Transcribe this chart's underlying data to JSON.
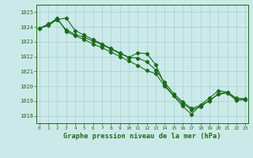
{
  "title": "Graphe pression niveau de la mer (hPa)",
  "bg_color": "#cce9e9",
  "grid_color": "#aad4d4",
  "line_color": "#1a6b1a",
  "xlim": [
    -0.3,
    23.3
  ],
  "ylim": [
    1017.5,
    1025.5
  ],
  "yticks": [
    1018,
    1019,
    1020,
    1021,
    1022,
    1023,
    1024,
    1025
  ],
  "xticks": [
    0,
    1,
    2,
    3,
    4,
    5,
    6,
    7,
    8,
    9,
    10,
    11,
    12,
    13,
    14,
    15,
    16,
    17,
    18,
    19,
    20,
    21,
    22,
    23
  ],
  "series1_x": [
    0,
    1,
    2,
    3,
    4,
    5,
    6,
    7,
    8,
    9,
    10,
    11,
    12,
    13,
    14,
    15,
    16,
    17,
    18,
    19,
    20,
    21,
    22,
    23
  ],
  "series1_y": [
    1023.9,
    1024.1,
    1024.5,
    1024.6,
    1023.75,
    1023.45,
    1023.15,
    1022.85,
    1022.55,
    1022.25,
    1021.95,
    1022.25,
    1022.2,
    1021.45,
    1020.1,
    1019.35,
    1018.65,
    1018.1,
    1018.75,
    1019.2,
    1019.7,
    1019.6,
    1019.2,
    1019.15
  ],
  "series2_x": [
    0,
    1,
    2,
    3,
    4,
    5,
    6,
    7,
    8,
    9,
    10,
    11,
    12,
    13,
    14,
    15,
    16,
    17,
    18,
    19,
    20,
    21,
    22,
    23
  ],
  "series2_y": [
    1023.9,
    1024.15,
    1024.6,
    1023.7,
    1023.4,
    1023.15,
    1022.85,
    1022.6,
    1022.3,
    1022.0,
    1021.7,
    1021.4,
    1021.05,
    1020.85,
    1020.0,
    1019.35,
    1018.85,
    1018.4,
    1018.6,
    1019.05,
    1019.45,
    1019.55,
    1019.05,
    1019.1
  ],
  "series3_x": [
    0,
    1,
    2,
    3,
    4,
    5,
    6,
    7,
    8,
    9,
    10,
    11,
    12,
    13,
    14,
    15,
    16,
    17,
    18,
    19,
    20,
    21,
    22,
    23
  ],
  "series3_y": [
    1023.9,
    1024.2,
    1024.5,
    1023.8,
    1023.5,
    1023.3,
    1023.05,
    1022.8,
    1022.5,
    1022.2,
    1021.95,
    1021.9,
    1021.65,
    1021.1,
    1020.25,
    1019.5,
    1018.95,
    1018.5,
    1018.7,
    1019.0,
    1019.5,
    1019.6,
    1019.1,
    1019.1
  ]
}
